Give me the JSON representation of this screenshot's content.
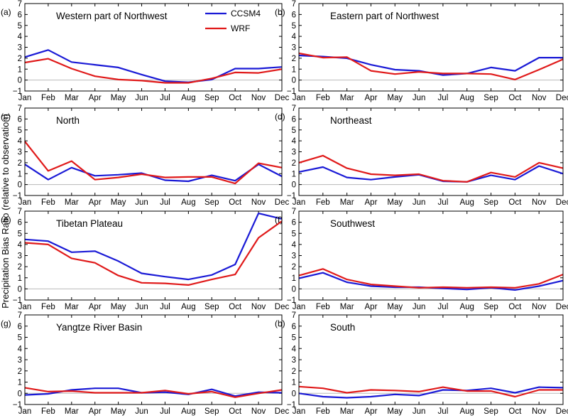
{
  "ylabel": "Precipitation Bias Ratio (relative to observation)",
  "legend": {
    "items": [
      {
        "name": "CCSM4",
        "color": "#1a1ad6"
      },
      {
        "name": "WRF",
        "color": "#e01a1a"
      }
    ]
  },
  "chart_data": [
    {
      "type": "line",
      "letter": "(a)",
      "title": "Western part of Northwest",
      "categories": [
        "Jan",
        "Feb",
        "Mar",
        "Apr",
        "May",
        "Jun",
        "Jul",
        "Aug",
        "Sep",
        "Oct",
        "Nov",
        "Dec"
      ],
      "yticks": [
        -1,
        0,
        1,
        2,
        3,
        4,
        5,
        6,
        7
      ],
      "ylim": [
        -1,
        7
      ],
      "series": [
        {
          "name": "CCSM4",
          "color": "#1a1ad6",
          "values": [
            2.1,
            2.75,
            1.65,
            1.4,
            1.15,
            0.5,
            -0.1,
            -0.2,
            0.05,
            1.05,
            1.05,
            1.2
          ]
        },
        {
          "name": "WRF",
          "color": "#e01a1a",
          "values": [
            1.6,
            1.95,
            1.05,
            0.35,
            0.05,
            -0.05,
            -0.25,
            -0.25,
            0.15,
            0.7,
            0.65,
            1.0
          ]
        }
      ]
    },
    {
      "type": "line",
      "letter": "(b)",
      "title": "Eastern part of Northwest",
      "categories": [
        "Jan",
        "Feb",
        "Mar",
        "Apr",
        "May",
        "Jun",
        "Jul",
        "Aug",
        "Sep",
        "Oct",
        "Nov",
        "Dec"
      ],
      "yticks": [
        -1,
        0,
        1,
        2,
        3,
        4,
        5,
        6,
        7
      ],
      "ylim": [
        -1,
        7
      ],
      "series": [
        {
          "name": "CCSM4",
          "color": "#1a1ad6",
          "values": [
            2.25,
            2.15,
            2.0,
            1.4,
            0.95,
            0.85,
            0.45,
            0.6,
            1.15,
            0.85,
            2.05,
            2.05
          ]
        },
        {
          "name": "WRF",
          "color": "#e01a1a",
          "values": [
            2.45,
            2.05,
            2.1,
            0.85,
            0.55,
            0.75,
            0.6,
            0.6,
            0.55,
            0.05,
            0.95,
            1.9
          ]
        }
      ]
    },
    {
      "type": "line",
      "letter": "(c)",
      "title": "North",
      "categories": [
        "Jan",
        "Feb",
        "Mar",
        "Apr",
        "May",
        "Jun",
        "Jul",
        "Aug",
        "Sep",
        "Oct",
        "Nov",
        "Dec"
      ],
      "yticks": [
        -1,
        0,
        1,
        2,
        3,
        4,
        5,
        6,
        7
      ],
      "ylim": [
        -1,
        7
      ],
      "series": [
        {
          "name": "CCSM4",
          "color": "#1a1ad6",
          "values": [
            1.85,
            0.45,
            1.55,
            0.8,
            0.9,
            1.05,
            0.4,
            0.3,
            0.85,
            0.35,
            1.85,
            0.75
          ]
        },
        {
          "name": "WRF",
          "color": "#e01a1a",
          "values": [
            3.95,
            1.25,
            2.15,
            0.45,
            0.65,
            0.95,
            0.65,
            0.7,
            0.7,
            0.1,
            1.95,
            1.55
          ]
        }
      ]
    },
    {
      "type": "line",
      "letter": "(d)",
      "title": "Northeast",
      "categories": [
        "Jan",
        "Feb",
        "Mar",
        "Apr",
        "May",
        "Jun",
        "Jul",
        "Aug",
        "Sep",
        "Oct",
        "Nov",
        "Dec"
      ],
      "yticks": [
        -1,
        0,
        1,
        2,
        3,
        4,
        5,
        6,
        7
      ],
      "ylim": [
        -1,
        7
      ],
      "series": [
        {
          "name": "CCSM4",
          "color": "#1a1ad6",
          "values": [
            1.15,
            1.6,
            0.65,
            0.45,
            0.7,
            0.9,
            0.3,
            0.25,
            0.85,
            0.45,
            1.7,
            1.0
          ]
        },
        {
          "name": "WRF",
          "color": "#e01a1a",
          "values": [
            2.0,
            2.65,
            1.5,
            0.95,
            0.85,
            0.95,
            0.35,
            0.25,
            1.1,
            0.7,
            2.0,
            1.5
          ]
        }
      ]
    },
    {
      "type": "line",
      "letter": "(e)",
      "title": "Tibetan Plateau",
      "categories": [
        "Jan",
        "Feb",
        "Mar",
        "Apr",
        "May",
        "Jun",
        "Jul",
        "Aug",
        "Sep",
        "Oct",
        "Nov",
        "Dec"
      ],
      "yticks": [
        -1,
        0,
        1,
        2,
        3,
        4,
        5,
        6,
        7
      ],
      "ylim": [
        -1,
        7
      ],
      "series": [
        {
          "name": "CCSM4",
          "color": "#1a1ad6",
          "values": [
            4.45,
            4.3,
            3.3,
            3.4,
            2.5,
            1.4,
            1.1,
            0.85,
            1.25,
            2.2,
            6.8,
            6.3
          ]
        },
        {
          "name": "WRF",
          "color": "#e01a1a",
          "values": [
            4.15,
            4.0,
            2.75,
            2.35,
            1.2,
            0.55,
            0.5,
            0.35,
            0.85,
            1.3,
            4.6,
            6.1
          ]
        }
      ]
    },
    {
      "type": "line",
      "letter": "(f)",
      "title": "Southwest",
      "categories": [
        "Jan",
        "Feb",
        "Mar",
        "Apr",
        "May",
        "Jun",
        "Jul",
        "Aug",
        "Sep",
        "Oct",
        "Nov",
        "Dec"
      ],
      "yticks": [
        -1,
        0,
        1,
        2,
        3,
        4,
        5,
        6,
        7
      ],
      "ylim": [
        -1,
        7
      ],
      "series": [
        {
          "name": "CCSM4",
          "color": "#1a1ad6",
          "values": [
            0.95,
            1.45,
            0.6,
            0.25,
            0.15,
            0.15,
            0.05,
            -0.05,
            0.1,
            -0.1,
            0.25,
            0.75
          ]
        },
        {
          "name": "WRF",
          "color": "#e01a1a",
          "values": [
            1.2,
            1.8,
            0.85,
            0.4,
            0.25,
            0.1,
            0.15,
            0.1,
            0.15,
            0.1,
            0.45,
            1.3
          ]
        }
      ]
    },
    {
      "type": "line",
      "letter": "(g)",
      "title": "Yangtze River Basin",
      "categories": [
        "Jan",
        "Feb",
        "Mar",
        "Apr",
        "May",
        "Jun",
        "Jul",
        "Aug",
        "Sep",
        "Oct",
        "Nov",
        "Dec"
      ],
      "yticks": [
        -1,
        0,
        1,
        2,
        3,
        4,
        5,
        6,
        7
      ],
      "ylim": [
        -1,
        7
      ],
      "series": [
        {
          "name": "CCSM4",
          "color": "#1a1ad6",
          "values": [
            -0.15,
            -0.05,
            0.3,
            0.45,
            0.45,
            0.05,
            0.1,
            -0.1,
            0.35,
            -0.25,
            0.1,
            0.05
          ]
        },
        {
          "name": "WRF",
          "color": "#e01a1a",
          "values": [
            0.5,
            0.15,
            0.2,
            0.05,
            0.05,
            0.05,
            0.25,
            -0.05,
            0.15,
            -0.35,
            0.0,
            0.3
          ]
        }
      ]
    },
    {
      "type": "line",
      "letter": "(h)",
      "title": "South",
      "categories": [
        "Jan",
        "Feb",
        "Mar",
        "Apr",
        "May",
        "Jun",
        "Jul",
        "Aug",
        "Sep",
        "Oct",
        "Nov",
        "Dec"
      ],
      "yticks": [
        -1,
        0,
        1,
        2,
        3,
        4,
        5,
        6,
        7
      ],
      "ylim": [
        -1,
        7
      ],
      "series": [
        {
          "name": "CCSM4",
          "color": "#1a1ad6",
          "values": [
            0.0,
            -0.3,
            -0.4,
            -0.3,
            -0.1,
            -0.2,
            0.3,
            0.25,
            0.45,
            0.05,
            0.55,
            0.5
          ]
        },
        {
          "name": "WRF",
          "color": "#e01a1a",
          "values": [
            0.6,
            0.45,
            0.05,
            0.3,
            0.25,
            0.15,
            0.55,
            0.2,
            0.2,
            -0.3,
            0.3,
            0.3
          ]
        }
      ]
    }
  ]
}
